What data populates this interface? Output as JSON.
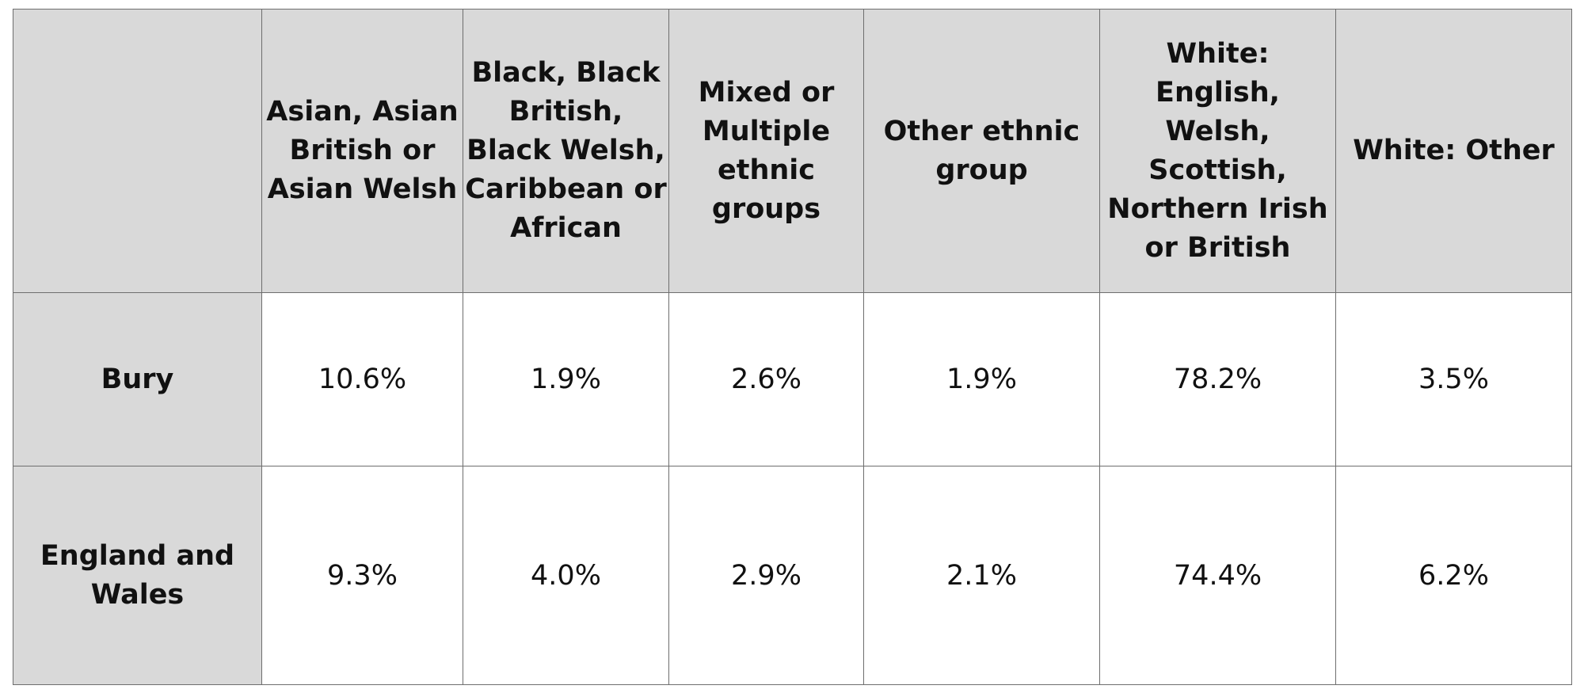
{
  "table": {
    "columns": [
      "Asian, Asian British or Asian Welsh",
      "Black, Black British, Black Welsh, Caribbean or African",
      "Mixed or Multiple ethnic groups",
      "Other ethnic group",
      "White: English, Welsh, Scottish, Northern Irish or British",
      "White: Other"
    ],
    "rows": [
      {
        "label": "Bury",
        "values": [
          "10.6%",
          "1.9%",
          "2.6%",
          "1.9%",
          "78.2%",
          "3.5%"
        ]
      },
      {
        "label": "England and Wales",
        "values": [
          "9.3%",
          "4.0%",
          "2.9%",
          "2.1%",
          "74.4%",
          "6.2%"
        ]
      }
    ]
  },
  "chart_data": {
    "type": "table",
    "categories": [
      "Asian, Asian British or Asian Welsh",
      "Black, Black British, Black Welsh, Caribbean or African",
      "Mixed or Multiple ethnic groups",
      "Other ethnic group",
      "White: English, Welsh, Scottish, Northern Irish or British",
      "White: Other"
    ],
    "series": [
      {
        "name": "Bury",
        "values": [
          10.6,
          1.9,
          2.6,
          1.9,
          78.2,
          3.5
        ]
      },
      {
        "name": "England and Wales",
        "values": [
          9.3,
          4.0,
          2.9,
          2.1,
          74.4,
          6.2
        ]
      }
    ],
    "title": ""
  },
  "colors": {
    "header_fill": "#d9d9d9",
    "cell_fill": "#ffffff",
    "border": "#6e6e6e",
    "text": "#111111"
  }
}
